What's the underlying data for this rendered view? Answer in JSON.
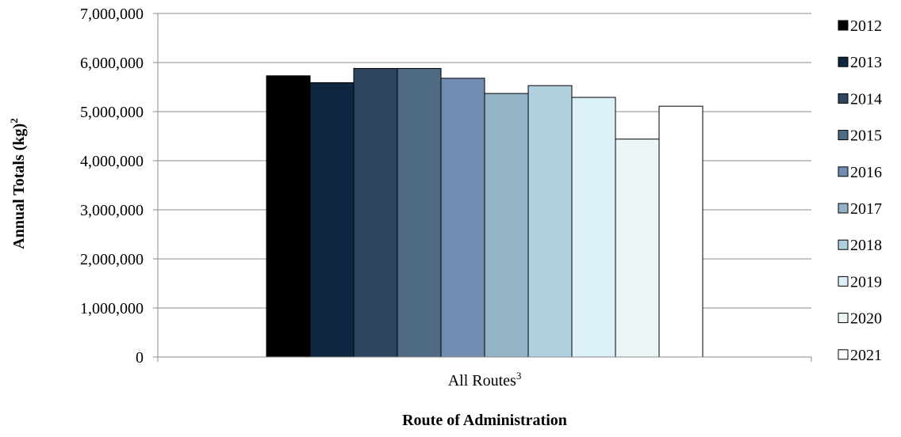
{
  "chart_data": {
    "type": "bar",
    "categories": [
      "All Routes"
    ],
    "category_superscript": "3",
    "series": [
      {
        "name": "2012",
        "values": [
          5730000
        ],
        "color": "#000000"
      },
      {
        "name": "2013",
        "values": [
          5590000
        ],
        "color": "#0f2640"
      },
      {
        "name": "2014",
        "values": [
          5880000
        ],
        "color": "#2c4660"
      },
      {
        "name": "2015",
        "values": [
          5880000
        ],
        "color": "#4e6b83"
      },
      {
        "name": "2016",
        "values": [
          5680000
        ],
        "color": "#738cb1"
      },
      {
        "name": "2017",
        "values": [
          5370000
        ],
        "color": "#95b3c7"
      },
      {
        "name": "2018",
        "values": [
          5530000
        ],
        "color": "#b0d0e0"
      },
      {
        "name": "2019",
        "values": [
          5290000
        ],
        "color": "#dcf0f8"
      },
      {
        "name": "2020",
        "values": [
          4440000
        ],
        "color": "#ecf6f7"
      },
      {
        "name": "2021",
        "values": [
          5110000
        ],
        "color": "#ffffff"
      }
    ],
    "ylabel": "Annual Totals (kg)",
    "ylabel_superscript": "2",
    "xlabel": "Route of Administration",
    "ylim": [
      0,
      7000000
    ],
    "yticks": [
      0,
      1000000,
      2000000,
      3000000,
      4000000,
      5000000,
      6000000,
      7000000
    ],
    "ytick_labels": [
      "0",
      "1,000,000",
      "2,000,000",
      "3,000,000",
      "4,000,000",
      "5,000,000",
      "6,000,000",
      "7,000,000"
    ],
    "grid": true,
    "legend_position": "right"
  }
}
